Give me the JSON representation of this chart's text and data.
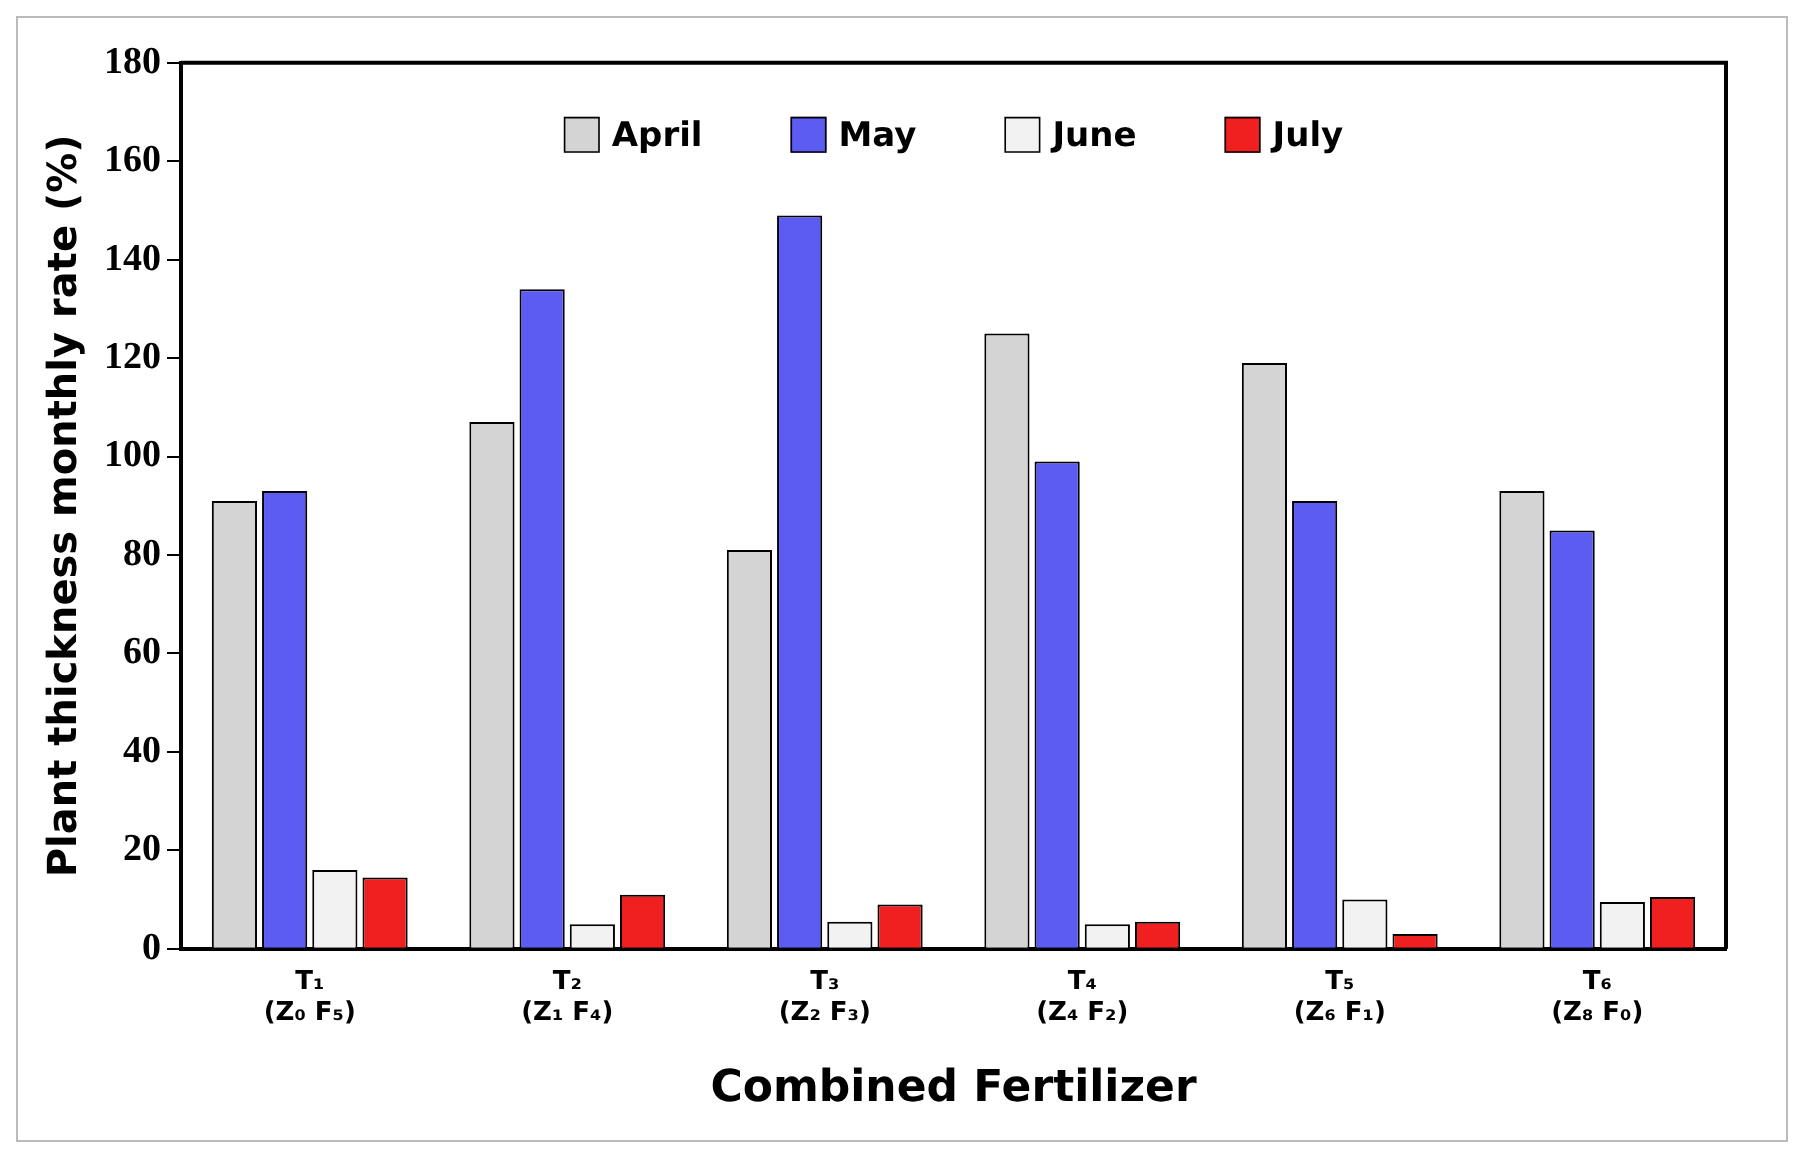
{
  "chart_data": {
    "type": "bar",
    "xlabel": "Combined Fertilizer",
    "ylabel": "Plant thickness monthly rate (%)",
    "categories": [
      "T₁\n(Z₀ F₅)",
      "T₂\n(Z₁ F₄)",
      "T₃\n(Z₂ F₃)",
      "T₄\n(Z₄ F₂)",
      "T₅\n(Z₆ F₁)",
      "T₆\n(Z₈ F₀)"
    ],
    "series": [
      {
        "name": "April",
        "color": "#d4d4d4",
        "values": [
          91,
          107,
          81,
          125,
          119,
          93
        ]
      },
      {
        "name": "May",
        "color": "#5c5cf2",
        "values": [
          93,
          134,
          149,
          99,
          91,
          85
        ]
      },
      {
        "name": "June",
        "color": "#f2f2f2",
        "values": [
          16,
          5,
          5.5,
          5,
          10,
          9.5
        ]
      },
      {
        "name": "July",
        "color": "#f02020",
        "values": [
          14.5,
          11,
          9,
          5.5,
          3,
          10.5
        ]
      }
    ],
    "ylim": [
      0,
      180
    ],
    "yticks": [
      0,
      20,
      40,
      60,
      80,
      100,
      120,
      140,
      160,
      180
    ],
    "grid": false,
    "legend": "top"
  }
}
